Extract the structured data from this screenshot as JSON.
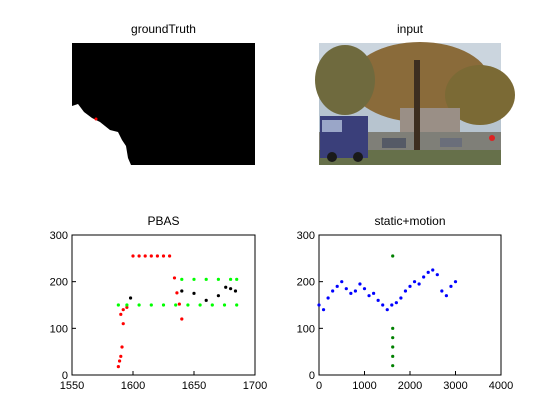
{
  "panels": {
    "ground_truth": {
      "title": "groundTruth"
    },
    "input": {
      "title": "input"
    }
  },
  "colors": {
    "background": "#ffffff",
    "mask_black": "#000000",
    "mask_white": "#ffffff",
    "red": "#ff0000",
    "green": "#00ff00",
    "dark_green": "#008000",
    "blue": "#0000ff",
    "black": "#000000"
  },
  "chart_data": [
    {
      "type": "scatter",
      "title": "PBAS",
      "xlabel": "",
      "ylabel": "",
      "xlim": [
        1550,
        1700
      ],
      "ylim": [
        0,
        300
      ],
      "xticks": [
        "1550",
        "1600",
        "1650",
        "1700"
      ],
      "yticks": [
        "0",
        "100",
        "200",
        "300"
      ],
      "grid": false,
      "series": [
        {
          "color": "#ff0000",
          "x": [
            1588,
            1589,
            1590,
            1591,
            1592,
            1600,
            1605,
            1610,
            1615,
            1620,
            1625,
            1630,
            1634,
            1636,
            1638,
            1640,
            1590,
            1592,
            1595
          ],
          "y": [
            18,
            30,
            40,
            60,
            110,
            255,
            255,
            255,
            255,
            255,
            255,
            255,
            208,
            176,
            152,
            120,
            130,
            140,
            145
          ]
        },
        {
          "color": "#00ff00",
          "x": [
            1588,
            1595,
            1605,
            1615,
            1625,
            1635,
            1645,
            1655,
            1665,
            1675,
            1685,
            1640,
            1650,
            1660,
            1670,
            1680,
            1685
          ],
          "y": [
            150,
            150,
            150,
            150,
            150,
            150,
            150,
            150,
            150,
            150,
            150,
            205,
            205,
            205,
            205,
            205,
            205
          ]
        },
        {
          "color": "#000000",
          "x": [
            1598,
            1640,
            1650,
            1660,
            1670,
            1676,
            1680,
            1684
          ],
          "y": [
            165,
            180,
            175,
            160,
            170,
            188,
            185,
            180
          ]
        }
      ]
    },
    {
      "type": "scatter",
      "title": "static+motion",
      "xlabel": "",
      "ylabel": "",
      "xlim": [
        0,
        4000
      ],
      "ylim": [
        0,
        300
      ],
      "xticks": [
        "0",
        "1000",
        "2000",
        "3000",
        "4000"
      ],
      "yticks": [
        "0",
        "100",
        "200",
        "300"
      ],
      "grid": false,
      "series": [
        {
          "color": "#0000ff",
          "x": [
            0,
            100,
            200,
            300,
            400,
            500,
            600,
            700,
            800,
            900,
            1000,
            1100,
            1200,
            1300,
            1400,
            1500,
            1600,
            1700,
            1800,
            1900,
            2000,
            2100,
            2200,
            2300,
            2400,
            2500,
            2600,
            2700,
            2800,
            2900,
            3000
          ],
          "y": [
            150,
            140,
            165,
            180,
            190,
            200,
            185,
            175,
            180,
            195,
            185,
            170,
            175,
            160,
            150,
            140,
            150,
            155,
            165,
            180,
            190,
            200,
            195,
            210,
            220,
            225,
            215,
            180,
            170,
            190,
            200
          ]
        },
        {
          "color": "#008000",
          "x": [
            1620,
            1620,
            1620,
            1620,
            1620,
            1620
          ],
          "y": [
            255,
            40,
            60,
            20,
            80,
            100
          ]
        }
      ]
    }
  ]
}
